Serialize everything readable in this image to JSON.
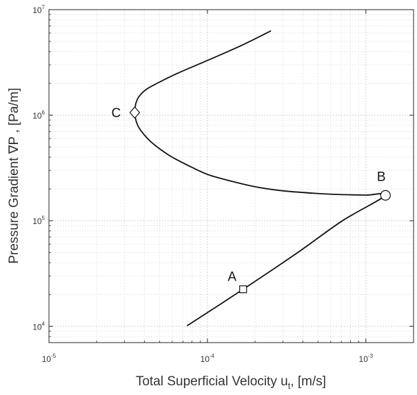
{
  "chart_data": {
    "type": "line",
    "x_scale": "log",
    "y_scale": "log",
    "xlim": [
      1e-05,
      0.002
    ],
    "ylim": [
      7000,
      10000000
    ],
    "grid": true,
    "xlabel": {
      "main": "Total Superficial Velocity u",
      "sub": "t",
      "rest": ", [m/s]"
    },
    "ylabel": "Pressure Gradient ∇P , [Pa/m]",
    "x_ticks": [
      {
        "value": 1e-05,
        "base": "10",
        "exp": "-5"
      },
      {
        "value": 0.0001,
        "base": "10",
        "exp": "-4"
      },
      {
        "value": 0.001,
        "base": "10",
        "exp": "-3"
      }
    ],
    "y_ticks": [
      {
        "value": 10000,
        "base": "10",
        "exp": "4"
      },
      {
        "value": 100000,
        "base": "10",
        "exp": "5"
      },
      {
        "value": 1000000,
        "base": "10",
        "exp": "6"
      },
      {
        "value": 10000000,
        "base": "10",
        "exp": "7"
      }
    ],
    "series": [
      {
        "color": "#111111",
        "x": [
          7.44e-05,
          0.000168,
          0.000372,
          0.000712,
          0.00133,
          0.001,
          0.0007,
          0.0005,
          0.0003,
          0.0002,
          0.00013,
          0.0001,
          8e-05,
          6e-05,
          5e-05,
          4.4e-05,
          4e-05,
          3.7e-05,
          3.55e-05,
          3.48e-05,
          3.53e-05,
          3.7e-05,
          4.1e-05,
          4.8e-05,
          6.5e-05,
          0.0001,
          0.00016,
          0.000252
        ],
        "y": [
          10100,
          22400,
          50000,
          100000,
          174000,
          175000,
          177000,
          181000,
          192000,
          210000,
          245000,
          275000,
          320000,
          400000,
          480000,
          560000,
          650000,
          760000,
          880000,
          1060000,
          1280000,
          1500000,
          1750000,
          2000000,
          2500000,
          3300000,
          4500000,
          6300000
        ]
      }
    ],
    "points": [
      {
        "label": "A",
        "marker": "square",
        "x": 0.000168,
        "y": 22400
      },
      {
        "label": "B",
        "marker": "circle",
        "x": 0.00133,
        "y": 174000
      },
      {
        "label": "C",
        "marker": "diamond",
        "x": 3.48e-05,
        "y": 1060000
      }
    ]
  },
  "colors": {
    "axis": "#262626",
    "grid_major": "#cfcfcf",
    "grid_minor": "#e6e6e6",
    "line": "#111111"
  }
}
